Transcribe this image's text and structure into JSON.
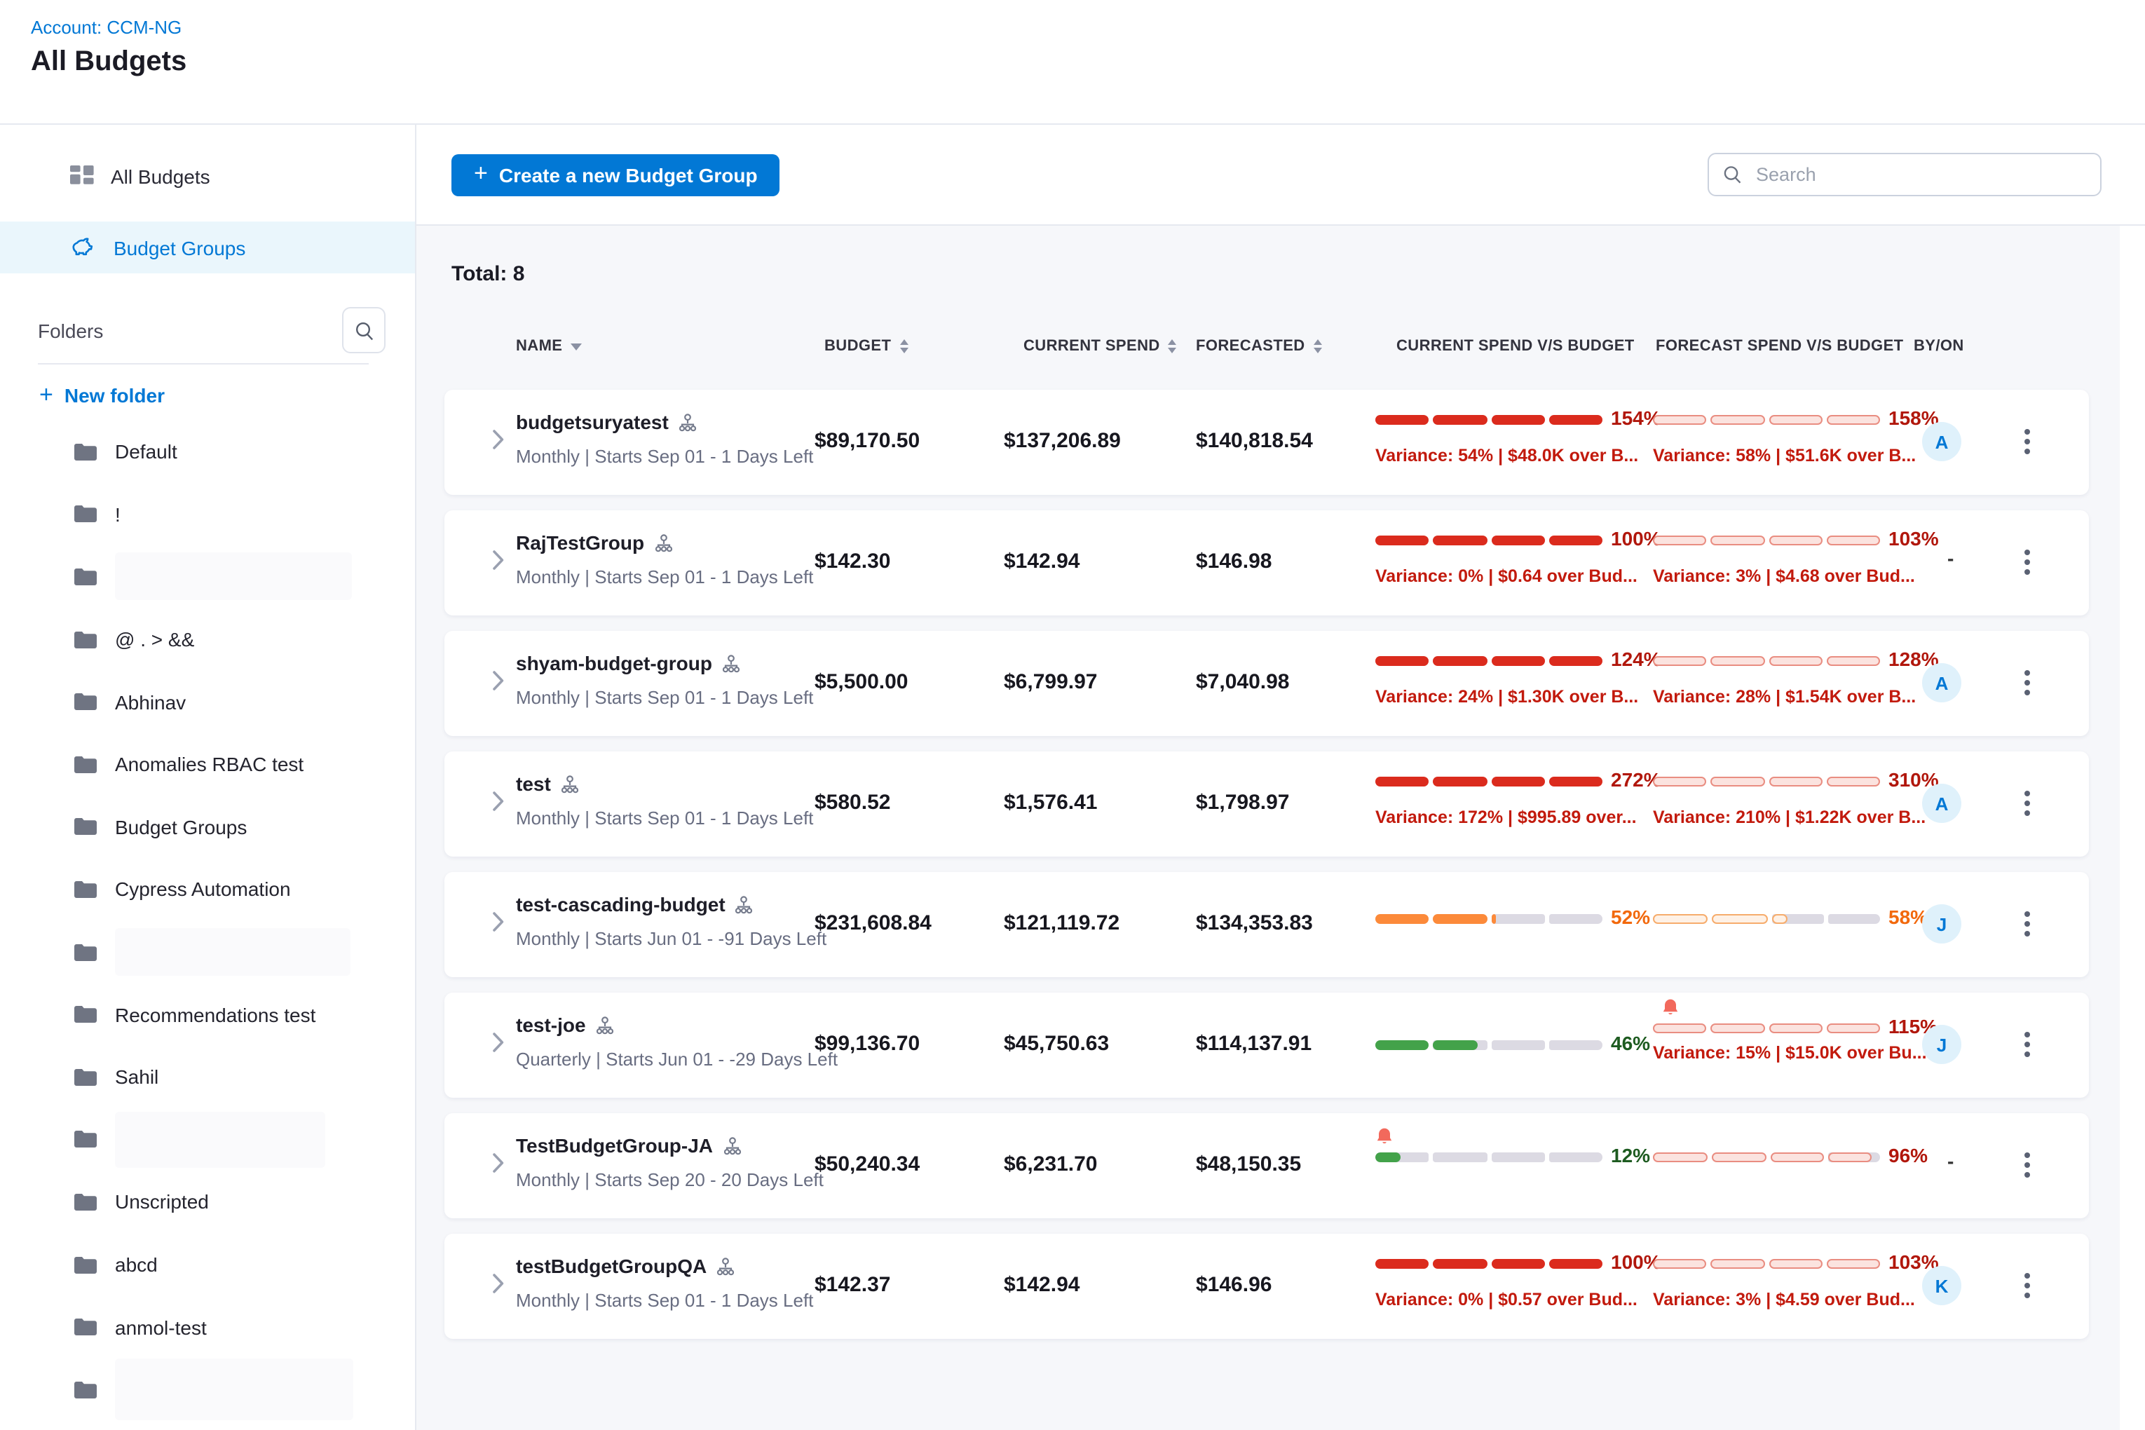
{
  "header": {
    "account_label": "Account: CCM-NG",
    "title": "All Budgets"
  },
  "sidebar": {
    "nav": [
      {
        "label": "All Budgets",
        "active": false
      },
      {
        "label": "Budget Groups",
        "active": true
      }
    ],
    "folders_label": "Folders",
    "new_folder_label": "New folder",
    "folders": [
      {
        "label": "Default"
      },
      {
        "label": "!"
      },
      {
        "label": "",
        "redacted": true,
        "rw": 169,
        "rh": 34
      },
      {
        "label": "@ . > &&"
      },
      {
        "label": "Abhinav"
      },
      {
        "label": "Anomalies RBAC test"
      },
      {
        "label": "Budget Groups"
      },
      {
        "label": "Cypress Automation"
      },
      {
        "label": "",
        "redacted": true,
        "rw": 168,
        "rh": 34
      },
      {
        "label": "Recommendations test"
      },
      {
        "label": "Sahil"
      },
      {
        "label": "",
        "redacted": true,
        "rw": 150,
        "rh": 40
      },
      {
        "label": "Unscripted"
      },
      {
        "label": "abcd"
      },
      {
        "label": "anmol-test"
      },
      {
        "label": "",
        "redacted": true,
        "rw": 170,
        "rh": 44
      },
      {
        "label": "",
        "redacted": true,
        "rw": 120,
        "rh": 18
      }
    ]
  },
  "toolbar": {
    "create_button": "Create a new Budget Group",
    "search_placeholder": "Search"
  },
  "summary": {
    "total_label": "Total: 8"
  },
  "table": {
    "columns": [
      "NAME",
      "BUDGET",
      "CURRENT SPEND",
      "FORECASTED",
      "CURRENT SPEND V/S BUDGET",
      "FORECAST SPEND V/S BUDGET",
      "BY/ON"
    ],
    "rows": [
      {
        "name": "budgetsuryatest",
        "period": "Monthly | Starts Sep 01 - 1 Days Left",
        "budget": "$89,170.50",
        "current_spend": "$137,206.89",
        "forecasted": "$140,818.54",
        "current_bar": {
          "label": "154%",
          "value": 154,
          "color": "red",
          "style": "solid"
        },
        "forecast_bar": {
          "label": "158%",
          "value": 158,
          "color": "red",
          "style": "outline"
        },
        "current_variance": "Variance: 54% | $48.0K over B...",
        "forecast_variance": "Variance: 58% | $51.6K over B...",
        "by": "A",
        "bell_current": false,
        "bell_forecast": false
      },
      {
        "name": "RajTestGroup",
        "period": "Monthly | Starts Sep 01 - 1 Days Left",
        "budget": "$142.30",
        "current_spend": "$142.94",
        "forecasted": "$146.98",
        "current_bar": {
          "label": "100%",
          "value": 100,
          "color": "red",
          "style": "solid"
        },
        "forecast_bar": {
          "label": "103%",
          "value": 103,
          "color": "red",
          "style": "outline"
        },
        "current_variance": "Variance: 0% | $0.64 over Bud...",
        "forecast_variance": "Variance: 3% | $4.68 over Bud...",
        "by": "-",
        "bell_current": false,
        "bell_forecast": false
      },
      {
        "name": "shyam-budget-group",
        "period": "Monthly | Starts Sep 01 - 1 Days Left",
        "budget": "$5,500.00",
        "current_spend": "$6,799.97",
        "forecasted": "$7,040.98",
        "current_bar": {
          "label": "124%",
          "value": 124,
          "color": "red",
          "style": "solid"
        },
        "forecast_bar": {
          "label": "128%",
          "value": 128,
          "color": "red",
          "style": "outline"
        },
        "current_variance": "Variance: 24% | $1.30K over B...",
        "forecast_variance": "Variance: 28% | $1.54K over B...",
        "by": "A",
        "bell_current": false,
        "bell_forecast": false
      },
      {
        "name": "test",
        "period": "Monthly | Starts Sep 01 - 1 Days Left",
        "budget": "$580.52",
        "current_spend": "$1,576.41",
        "forecasted": "$1,798.97",
        "current_bar": {
          "label": "272%",
          "value": 272,
          "color": "red",
          "style": "solid"
        },
        "forecast_bar": {
          "label": "310%",
          "value": 310,
          "color": "red",
          "style": "outline"
        },
        "current_variance": "Variance: 172% | $995.89 over...",
        "forecast_variance": "Variance: 210% | $1.22K over B...",
        "by": "A",
        "bell_current": false,
        "bell_forecast": false
      },
      {
        "name": "test-cascading-budget",
        "period": "Monthly | Starts Jun 01 - -91 Days Left",
        "budget": "$231,608.84",
        "current_spend": "$121,119.72",
        "forecasted": "$134,353.83",
        "current_bar": {
          "label": "52%",
          "value": 52,
          "color": "orange",
          "style": "solid"
        },
        "forecast_bar": {
          "label": "58%",
          "value": 58,
          "color": "orange",
          "style": "outline"
        },
        "current_variance": "",
        "forecast_variance": "",
        "by": "J",
        "bell_current": false,
        "bell_forecast": false
      },
      {
        "name": "test-joe",
        "period": "Quarterly | Starts Jun 01 - -29 Days Left",
        "budget": "$99,136.70",
        "current_spend": "$45,750.63",
        "forecasted": "$114,137.91",
        "current_bar": {
          "label": "46%",
          "value": 46,
          "color": "green",
          "style": "solid"
        },
        "forecast_bar": {
          "label": "115%",
          "value": 115,
          "color": "red",
          "style": "outline"
        },
        "current_variance": "",
        "forecast_variance": "Variance: 15% | $15.0K over Bu...",
        "by": "J",
        "bell_current": false,
        "bell_forecast": true
      },
      {
        "name": "TestBudgetGroup-JA",
        "period": "Monthly | Starts Sep 20 - 20 Days Left",
        "budget": "$50,240.34",
        "current_spend": "$6,231.70",
        "forecasted": "$48,150.35",
        "current_bar": {
          "label": "12%",
          "value": 12,
          "color": "green",
          "style": "solid"
        },
        "forecast_bar": {
          "label": "96%",
          "value": 96,
          "color": "red",
          "style": "outline"
        },
        "current_variance": "",
        "forecast_variance": "",
        "by": "-",
        "bell_current": true,
        "bell_forecast": false
      },
      {
        "name": "testBudgetGroupQA",
        "period": "Monthly | Starts Sep 01 - 1 Days Left",
        "budget": "$142.37",
        "current_spend": "$142.94",
        "forecasted": "$146.96",
        "current_bar": {
          "label": "100%",
          "value": 100,
          "color": "red",
          "style": "solid"
        },
        "forecast_bar": {
          "label": "103%",
          "value": 103,
          "color": "red",
          "style": "outline"
        },
        "current_variance": "Variance: 0% | $0.57 over Bud...",
        "forecast_variance": "Variance: 3% | $4.59 over Bud...",
        "by": "K",
        "bell_current": false,
        "bell_forecast": false
      }
    ]
  },
  "colors": {
    "blue": "#0278D5",
    "red_bar": "#DB2B1D",
    "red_tint": "#FBE3DF",
    "red_border": "#E98D81",
    "red_label": "#B1170C",
    "orange_bar": "#FC8A3A",
    "orange_tint": "#FEF1E6",
    "orange_border": "#F6AC6C",
    "orange_label": "#F2690D",
    "green_bar": "#43A24A",
    "green_label": "#1D5B20",
    "track_gray": "#DCDAE3",
    "variance_red": "#C21A0D",
    "bell_red": "#F2695C"
  }
}
